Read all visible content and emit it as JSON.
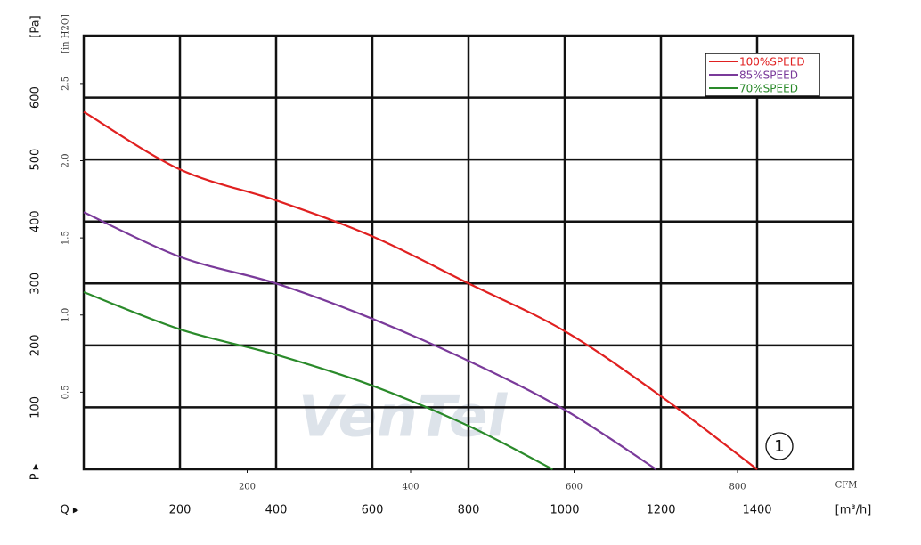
{
  "chart_data": {
    "type": "line",
    "x_label": "[m³/h]",
    "y_label": "[Pa]",
    "y2_label": "[in H2O]",
    "x2_label": "CFM",
    "p_marker": "P ▸",
    "q_marker": "Q ▸",
    "watermark": "VenTel",
    "annotation": "1",
    "xlim": [
      0,
      1600
    ],
    "xticks": [
      200,
      400,
      600,
      800,
      1000,
      1200,
      1400
    ],
    "ylim": [
      0,
      700
    ],
    "yticks": [
      100,
      200,
      300,
      400,
      500,
      600
    ],
    "y2lim": [
      0,
      2.811
    ],
    "y2ticks": [
      0.5,
      {
        "value": 1.0,
        "label": "1.0"
      },
      1.5,
      {
        "value": 2.0,
        "label": "2.0"
      },
      2.5
    ],
    "x2lim": [
      0,
      941.7
    ],
    "x2ticks": [
      200,
      400,
      600,
      800
    ],
    "grid": true,
    "legend": "top-right",
    "series": [
      {
        "name": "100%SPEED",
        "color": "#e02020",
        "x": [
          0,
          200,
          400,
          600,
          800,
          1000,
          1200,
          1400
        ],
        "values": [
          577,
          484,
          434,
          376,
          300,
          223,
          118,
          0
        ]
      },
      {
        "name": "85%SPEED",
        "color": "#7a3a9a",
        "x": [
          0,
          200,
          400,
          600,
          800,
          1000,
          1190
        ],
        "values": [
          415,
          343,
          300,
          243,
          175,
          96,
          0
        ]
      },
      {
        "name": "70%SPEED",
        "color": "#2a8a2a",
        "x": [
          0,
          200,
          400,
          600,
          800,
          975
        ],
        "values": [
          286,
          226,
          185,
          135,
          70,
          0
        ]
      }
    ]
  }
}
